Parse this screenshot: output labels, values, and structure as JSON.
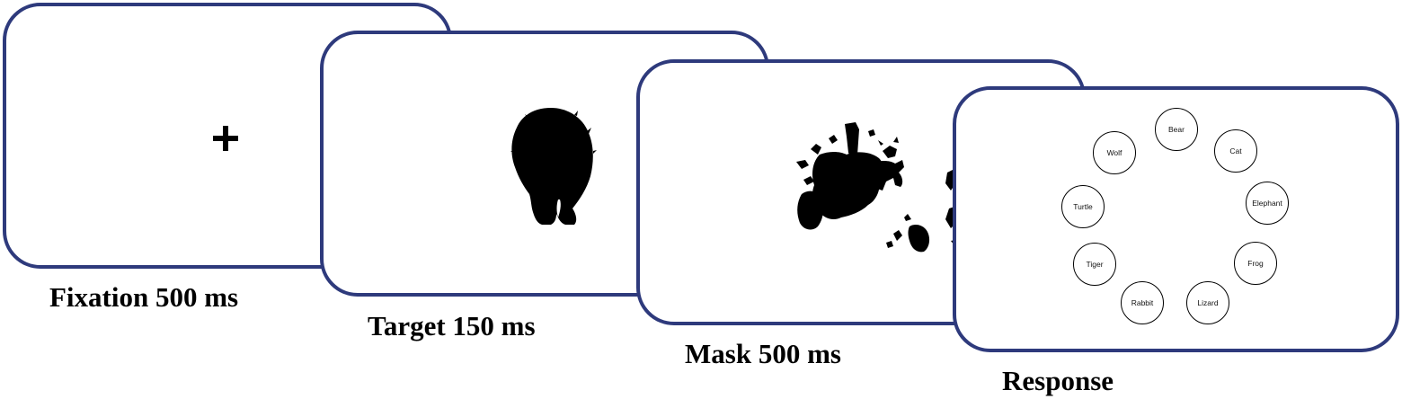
{
  "panels": {
    "fixation": {
      "caption": "Fixation 500 ms"
    },
    "target": {
      "caption": "Target 150 ms"
    },
    "mask": {
      "caption": "Mask 500 ms"
    },
    "response": {
      "caption": "Response",
      "choices": [
        "Bear",
        "Cat",
        "Elephant",
        "Frog",
        "Lizard",
        "Rabbit",
        "Tiger",
        "Turtle",
        "Wolf"
      ]
    }
  },
  "colors": {
    "screen_border": "#2e3a7c",
    "silhouette": "#000000",
    "background": "#ffffff"
  }
}
